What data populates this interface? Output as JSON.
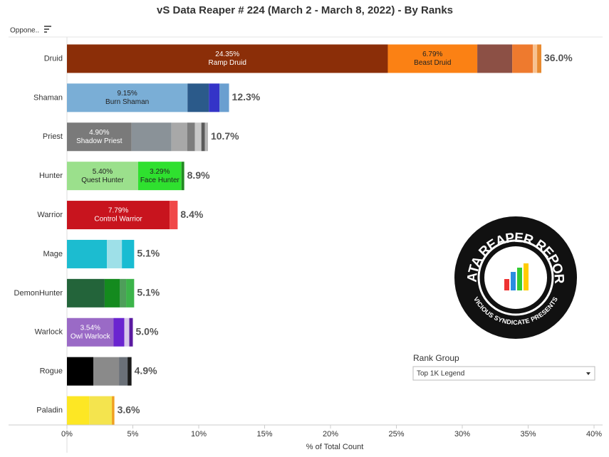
{
  "chart_data": {
    "type": "stacked-bar",
    "title": "vS Data Reaper #  224 (March 2 - March 8, 2022) - By Ranks",
    "y_header": "Oppone..",
    "x_label": "% of Total Count",
    "xlim": [
      0,
      40
    ],
    "xticks": [
      {
        "value": 0,
        "label": "0%"
      },
      {
        "value": 5,
        "label": "5%"
      },
      {
        "value": 10,
        "label": "10%"
      },
      {
        "value": 15,
        "label": "15%"
      },
      {
        "value": 20,
        "label": "20%"
      },
      {
        "value": 25,
        "label": "25%"
      },
      {
        "value": 30,
        "label": "30%"
      },
      {
        "value": 35,
        "label": "35%"
      },
      {
        "value": 40,
        "label": "40%"
      }
    ],
    "categories": [
      "Druid",
      "Shaman",
      "Priest",
      "Hunter",
      "Warrior",
      "Mage",
      "DemonHunter",
      "Warlock",
      "Rogue",
      "Paladin"
    ],
    "totals": [
      36.0,
      12.3,
      10.7,
      8.9,
      8.4,
      5.1,
      5.1,
      5.0,
      4.9,
      3.6
    ],
    "total_labels": [
      "36.0%",
      "12.3%",
      "10.7%",
      "8.9%",
      "8.4%",
      "5.1%",
      "5.1%",
      "5.0%",
      "4.9%",
      "3.6%"
    ],
    "segments": [
      [
        {
          "value": 24.35,
          "value_label": "24.35%",
          "name": "Ramp Druid",
          "color": "#8b2e08",
          "text_color": "#ffffff"
        },
        {
          "value": 6.79,
          "value_label": "6.79%",
          "name": "Beast Druid",
          "color": "#fb8114",
          "text_color": "#222222"
        },
        {
          "value": 2.65,
          "color": "#8c5045"
        },
        {
          "value": 1.57,
          "color": "#ee7a2e"
        },
        {
          "value": 0.32,
          "color": "#f7c190"
        },
        {
          "value": 0.32,
          "color": "#e88a30"
        }
      ],
      [
        {
          "value": 9.15,
          "value_label": "9.15%",
          "name": "Burn Shaman",
          "color": "#7aaed6",
          "text_color": "#222222"
        },
        {
          "value": 1.62,
          "color": "#2b5a8a"
        },
        {
          "value": 0.81,
          "color": "#3434c8"
        },
        {
          "value": 0.72,
          "color": "#6a9fd0"
        }
      ],
      [
        {
          "value": 4.9,
          "value_label": "4.90%",
          "name": "Shadow Priest",
          "color": "#7a7a7a",
          "text_color": "#ffffff"
        },
        {
          "value": 3.03,
          "color": "#8a9298"
        },
        {
          "value": 1.19,
          "color": "#a8a8a8"
        },
        {
          "value": 0.59,
          "color": "#7d7d7d"
        },
        {
          "value": 0.49,
          "color": "#c8c8c8"
        },
        {
          "value": 0.27,
          "color": "#5a5a5a"
        },
        {
          "value": 0.23,
          "color": "#b5b5b5"
        }
      ],
      [
        {
          "value": 5.4,
          "value_label": "5.40%",
          "name": "Quest Hunter",
          "color": "#9be08c",
          "text_color": "#222222"
        },
        {
          "value": 3.29,
          "value_label": "3.29%",
          "name": "Face Hunter",
          "color": "#2fe02f",
          "text_color": "#222222"
        },
        {
          "value": 0.21,
          "color": "#238a23"
        }
      ],
      [
        {
          "value": 7.79,
          "value_label": "7.79%",
          "name": "Control Warrior",
          "color": "#c8141e",
          "text_color": "#ffffff"
        },
        {
          "value": 0.61,
          "color": "#f04848"
        }
      ],
      [
        {
          "value": 3.03,
          "color": "#1cbcd0"
        },
        {
          "value": 1.14,
          "color": "#9ee0e8"
        },
        {
          "value": 0.93,
          "color": "#19bcd2"
        }
      ],
      [
        {
          "value": 2.86,
          "color": "#23643a"
        },
        {
          "value": 1.14,
          "color": "#148a1e"
        },
        {
          "value": 0.49,
          "color": "#4e9e5a"
        },
        {
          "value": 0.61,
          "color": "#3cb44a"
        }
      ],
      [
        {
          "value": 3.54,
          "value_label": "3.54%",
          "name": "Owl Warlock",
          "color": "#9a6ac6",
          "text_color": "#ffffff"
        },
        {
          "value": 0.81,
          "color": "#6a24d0"
        },
        {
          "value": 0.38,
          "color": "#d8c8ea"
        },
        {
          "value": 0.27,
          "color": "#5a1aa0"
        }
      ],
      [
        {
          "value": 2.0,
          "color": "#000000"
        },
        {
          "value": 1.95,
          "color": "#8a8a8a"
        },
        {
          "value": 0.65,
          "color": "#6a7078"
        },
        {
          "value": 0.3,
          "color": "#1a1a1a"
        }
      ],
      [
        {
          "value": 1.68,
          "color": "#fde724"
        },
        {
          "value": 1.73,
          "color": "#f4e44e"
        },
        {
          "value": 0.19,
          "color": "#f0a020"
        }
      ]
    ],
    "total_color": "#555555",
    "rank_group_label": "Rank Group",
    "rank_group_value": "Top 1K Legend",
    "logo_top": "DATA REAPER REPORT",
    "logo_bottom": "VICIOUS SYNDICATE PRESENTS"
  }
}
